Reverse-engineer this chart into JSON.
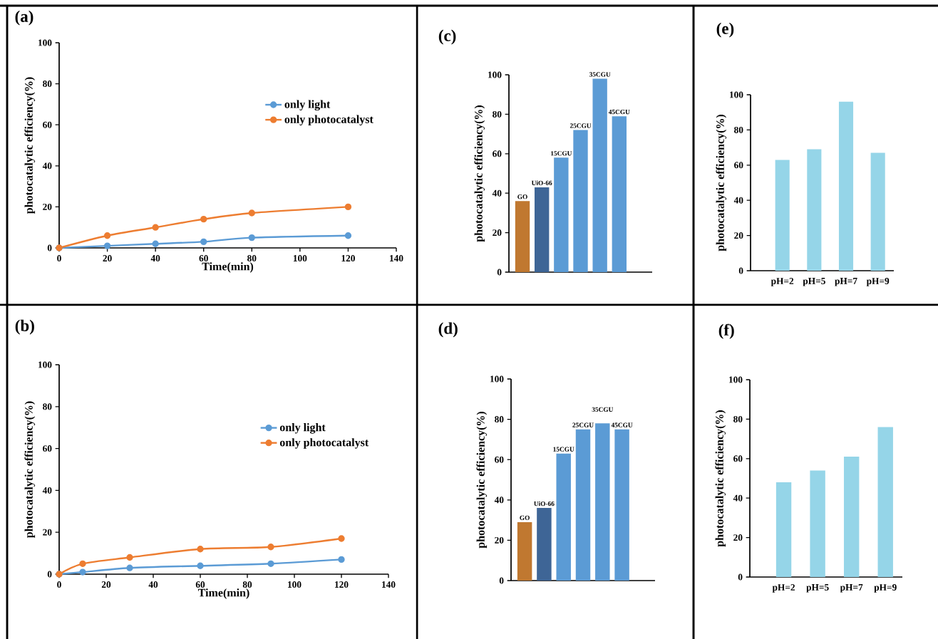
{
  "chart_data": [
    {
      "type": "line",
      "title": "(a)",
      "xlabel": "Time(min)",
      "ylabel": "photocatalytic efficiency(%)",
      "xlim": [
        0,
        140
      ],
      "xticks": [
        0,
        20,
        40,
        60,
        80,
        100,
        120,
        140
      ],
      "ylim": [
        0,
        100
      ],
      "yticks": [
        0,
        20,
        40,
        60,
        80,
        100
      ],
      "legend": "right",
      "marker": "circle",
      "series": [
        {
          "name": "only light",
          "color": "#5b9bd5",
          "x": [
            0,
            20,
            40,
            60,
            80,
            120
          ],
          "values": [
            0,
            1,
            2,
            3,
            5,
            6
          ]
        },
        {
          "name": "only photocatalyst",
          "color": "#ed7d31",
          "x": [
            0,
            20,
            40,
            60,
            80,
            120
          ],
          "values": [
            0,
            6,
            10,
            14,
            17,
            20
          ]
        }
      ]
    },
    {
      "type": "bar",
      "title": "(c)",
      "ylabel": "photocatalytic efficiency(%)",
      "tick_labels": "y",
      "categories": [
        "GO",
        "UiO-66",
        "15CGU",
        "25CGU",
        "35CGU",
        "45CGU"
      ],
      "values": [
        36,
        43,
        58,
        72,
        98,
        79
      ],
      "colors": [
        "#c07830",
        "#3e6596",
        "#5b9bd5",
        "#5b9bd5",
        "#5b9bd5",
        "#5b9bd5"
      ],
      "ylim": [
        0,
        100
      ],
      "yticks": [
        0,
        20,
        40,
        60,
        80,
        100
      ]
    },
    {
      "type": "bar",
      "title": "(e)",
      "ylabel": "photocatalytic efficiency(%)",
      "categories": [
        "pH=2",
        "pH=5",
        "pH=7",
        "pH=9"
      ],
      "values": [
        63,
        69,
        96,
        67
      ],
      "colors": [
        "#95d5e8",
        "#95d5e8",
        "#95d5e8",
        "#95d5e8"
      ],
      "ylim": [
        0,
        100
      ],
      "yticks": [
        0,
        20,
        40,
        60,
        80,
        100
      ]
    },
    {
      "type": "line",
      "title": "(b)",
      "xlabel": "Time(min)",
      "ylabel": "photocatalytic efficiency(%)",
      "xlim": [
        0,
        140
      ],
      "xticks": [
        0,
        20,
        40,
        60,
        80,
        100,
        120,
        140
      ],
      "ylim": [
        0,
        100
      ],
      "yticks": [
        0,
        20,
        40,
        60,
        80,
        100
      ],
      "legend": "right",
      "marker": "circle",
      "series": [
        {
          "name": "only light",
          "color": "#5b9bd5",
          "x": [
            0,
            10,
            30,
            60,
            90,
            120
          ],
          "values": [
            0,
            1,
            3,
            4,
            5,
            7
          ]
        },
        {
          "name": "only photocatalyst",
          "color": "#ed7d31",
          "x": [
            0,
            10,
            30,
            60,
            90,
            120
          ],
          "values": [
            0,
            5,
            8,
            12,
            13,
            17
          ]
        }
      ]
    },
    {
      "type": "bar",
      "title": "(d)",
      "ylabel": "photocatalytic efficiency(%)",
      "tick_labels": "y",
      "categories": [
        "GO",
        "UiO-66",
        "15CGU",
        "25CGU",
        "35CGU",
        "45CGU"
      ],
      "values": [
        29,
        36,
        63,
        75,
        78,
        75
      ],
      "colors": [
        "#c07830",
        "#3e6596",
        "#5b9bd5",
        "#5b9bd5",
        "#5b9bd5",
        "#5b9bd5"
      ],
      "ylim": [
        0,
        100
      ],
      "yticks": [
        0,
        20,
        40,
        60,
        80,
        100
      ]
    },
    {
      "type": "bar",
      "title": "(f)",
      "ylabel": "photocatalytic efficiency(%)",
      "categories": [
        "pH=2",
        "pH=5",
        "pH=7",
        "pH=9"
      ],
      "values": [
        48,
        54,
        61,
        76
      ],
      "colors": [
        "#95d5e8",
        "#95d5e8",
        "#95d5e8",
        "#95d5e8"
      ],
      "ylim": [
        0,
        100
      ],
      "yticks": [
        0,
        20,
        40,
        60,
        80,
        100
      ]
    }
  ]
}
